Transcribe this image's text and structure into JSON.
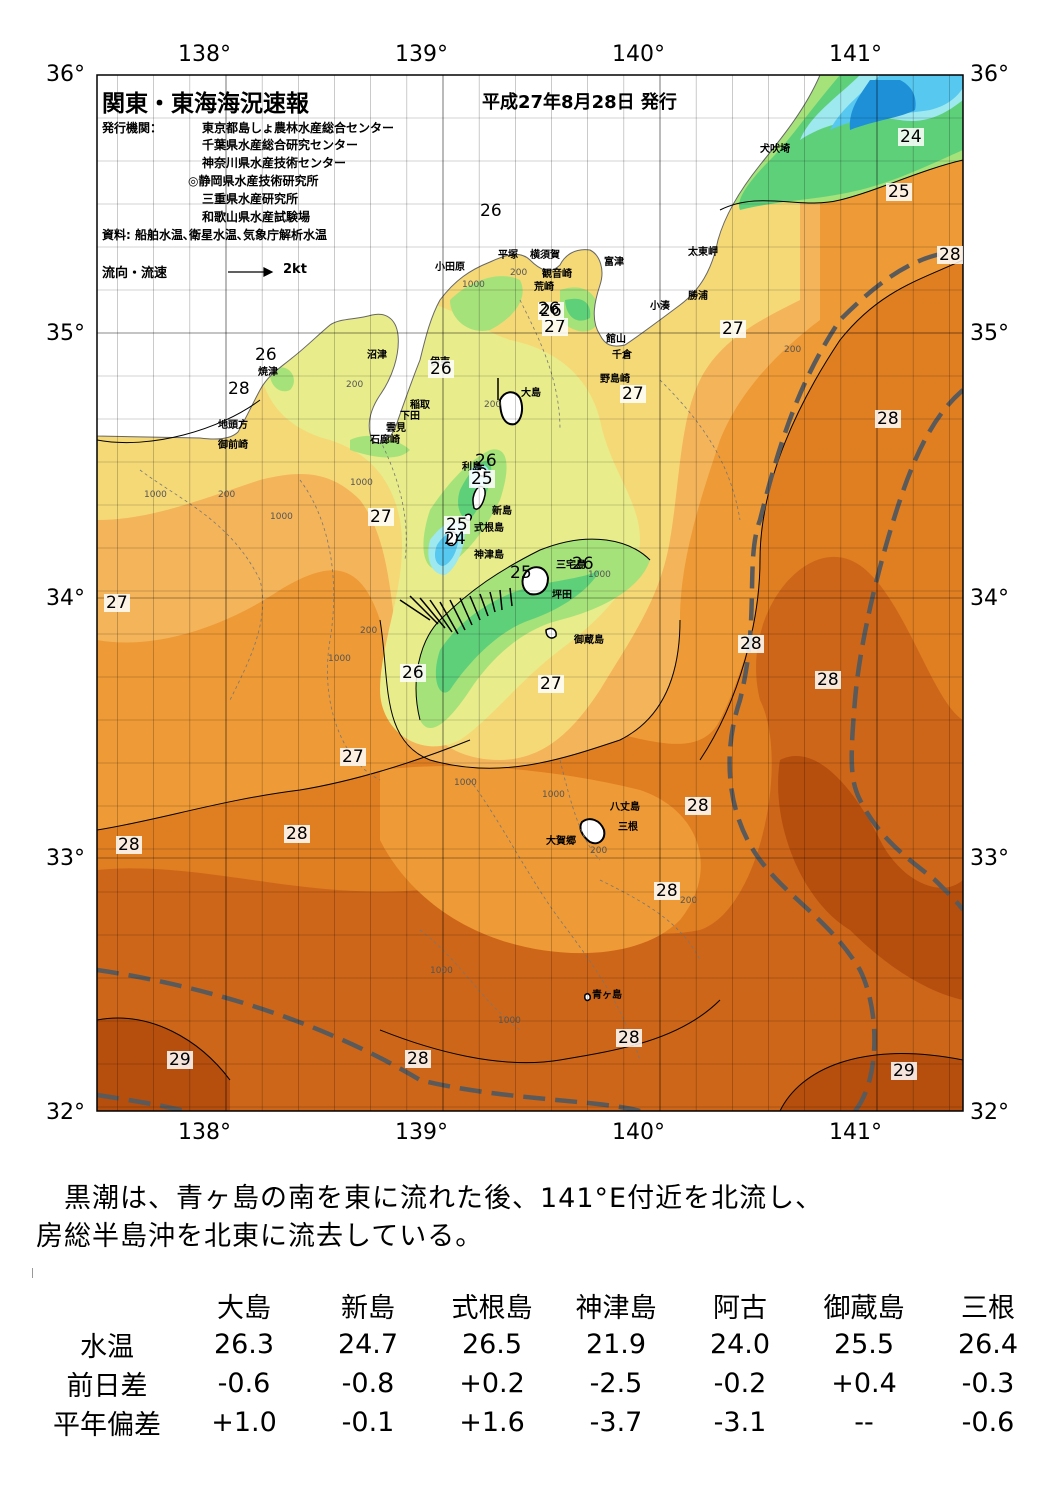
{
  "header": {
    "title": "関東・東海海況速報",
    "issue_date": "平成27年8月28日 発行",
    "org_label": "発行機関：",
    "organizations": [
      "東京都島しょ農林水産総合センター",
      "千葉県水産総合研究センター",
      "神奈川県水産技術センター",
      "◎静岡県水産技術研究所",
      "三重県水産研究所",
      "和歌山県水産試験場"
    ],
    "source": "資料: 船舶水温､衛星水温､気象庁解析水温"
  },
  "legend": {
    "label": "流向・流速",
    "unit": "2kt"
  },
  "map": {
    "lon_labels_top": [
      "138°",
      "139°",
      "140°",
      "141°"
    ],
    "lon_labels_bottom": [
      "138°",
      "139°",
      "140°",
      "141°"
    ],
    "lat_labels_left": [
      "36°",
      "35°",
      "34°",
      "33°",
      "32°"
    ],
    "lat_labels_right": [
      "36°",
      "35°",
      "34°",
      "33°",
      "32°"
    ],
    "places": [
      "犬吠埼",
      "太東岬",
      "勝浦",
      "小湊",
      "富津",
      "横須賀",
      "観音崎",
      "平塚",
      "小田原",
      "荒崎",
      "館山",
      "千倉",
      "野島崎",
      "大島",
      "沼津",
      "焼津",
      "伊東",
      "稲取",
      "下田",
      "雲見",
      "石廊崎",
      "地頭方",
      "御前崎",
      "利島",
      "新島",
      "式根島",
      "神津島",
      "三宅島",
      "坪田",
      "御蔵島",
      "八丈島",
      "三根",
      "大賀郷",
      "青ヶ島"
    ],
    "isotherm_labels": [
      "24",
      "25",
      "26",
      "27",
      "28",
      "28",
      "27",
      "27",
      "26",
      "28",
      "26",
      "26",
      "27",
      "25",
      "25",
      "26",
      "24",
      "26",
      "25",
      "26",
      "27",
      "27",
      "26",
      "27",
      "28",
      "28",
      "28",
      "28",
      "28",
      "28",
      "28",
      "28",
      "29",
      "29",
      "28",
      "28"
    ],
    "depth_labels": [
      "1000",
      "200",
      "200",
      "200",
      "1000",
      "200",
      "1000",
      "1000",
      "200",
      "1000",
      "200",
      "1000",
      "200",
      "1000",
      "1000",
      "200",
      "1000",
      "1000",
      "1000",
      "1000"
    ],
    "colors": {
      "t23": "#1e90d8",
      "t24": "#57c8f0",
      "t25": "#9ee8f0",
      "t26a": "#5fd07a",
      "t26b": "#a6e27a",
      "t27a": "#e8ec8a",
      "t27b": "#f5d977",
      "t27c": "#f4b45a",
      "t28a": "#ee9a36",
      "t28b": "#e07e22",
      "t29a": "#cd6618",
      "t29b": "#b64e0e",
      "land": "#ffffff",
      "kuroshio": "#5a5a5a"
    }
  },
  "description": [
    "　黒潮は、青ヶ島の南を東に流れた後、141°E付近を北流し、",
    "房総半島沖を北東に流去している。"
  ],
  "observations": {
    "columns": [
      "大島",
      "新島",
      "式根島",
      "神津島",
      "阿古",
      "御蔵島",
      "三根"
    ],
    "rows": [
      {
        "label": "水温",
        "values": [
          "26.3",
          "24.7",
          "26.5",
          "21.9",
          "24.0",
          "25.5",
          "26.4"
        ]
      },
      {
        "label": "前日差",
        "values": [
          "-0.6",
          "-0.8",
          "+0.2",
          "-2.5",
          "-0.2",
          "+0.4",
          "-0.3"
        ]
      },
      {
        "label": "平年偏差",
        "values": [
          "+1.0",
          "-0.1",
          "+1.6",
          "-3.7",
          "-3.1",
          "--",
          "-0.6"
        ]
      }
    ]
  }
}
